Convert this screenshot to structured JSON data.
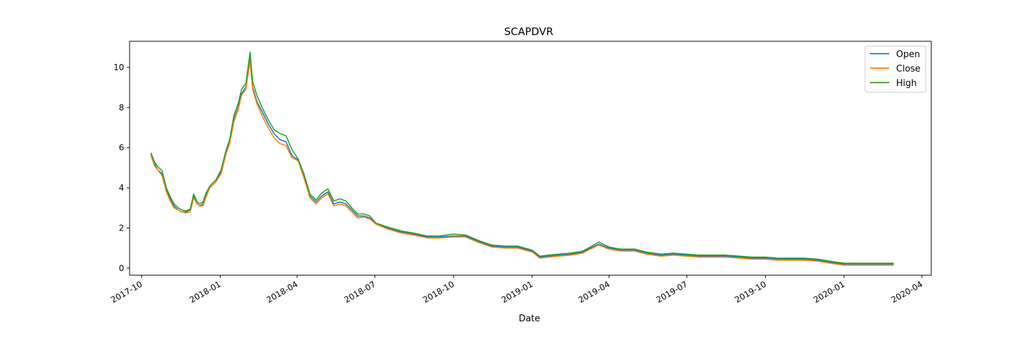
{
  "chart_data": {
    "type": "line",
    "title": "SCAPDVR",
    "xlabel": "Date",
    "ylabel": "",
    "xlim": [
      "2017-09-17",
      "2020-04-12"
    ],
    "ylim": [
      -0.35,
      11.3
    ],
    "x_ticks": [
      "2017-10",
      "2018-01",
      "2018-04",
      "2018-07",
      "2018-10",
      "2019-01",
      "2019-04",
      "2019-07",
      "2019-10",
      "2020-01",
      "2020-04"
    ],
    "y_ticks": [
      0,
      2,
      4,
      6,
      8,
      10
    ],
    "grid": false,
    "legend_position": "top-right",
    "colors": {
      "Open": "#1f77b4",
      "Close": "#ff7f0e",
      "High": "#2ca02c"
    },
    "x": [
      "2017-10-12",
      "2017-10-16",
      "2017-10-20",
      "2017-10-25",
      "2017-10-30",
      "2017-11-03",
      "2017-11-08",
      "2017-11-13",
      "2017-11-17",
      "2017-11-22",
      "2017-11-27",
      "2017-12-01",
      "2017-12-05",
      "2017-12-08",
      "2017-12-12",
      "2017-12-15",
      "2017-12-20",
      "2017-12-27",
      "2018-01-02",
      "2018-01-08",
      "2018-01-12",
      "2018-01-17",
      "2018-01-22",
      "2018-01-26",
      "2018-01-31",
      "2018-02-05",
      "2018-02-08",
      "2018-02-13",
      "2018-02-19",
      "2018-02-26",
      "2018-03-05",
      "2018-03-12",
      "2018-03-19",
      "2018-03-26",
      "2018-04-02",
      "2018-04-09",
      "2018-04-16",
      "2018-04-23",
      "2018-04-30",
      "2018-05-07",
      "2018-05-14",
      "2018-05-21",
      "2018-05-28",
      "2018-06-04",
      "2018-06-11",
      "2018-06-18",
      "2018-06-25",
      "2018-07-02",
      "2018-07-16",
      "2018-08-01",
      "2018-08-15",
      "2018-09-01",
      "2018-09-15",
      "2018-10-01",
      "2018-10-15",
      "2018-11-01",
      "2018-11-15",
      "2018-12-01",
      "2018-12-15",
      "2019-01-01",
      "2019-01-10",
      "2019-01-20",
      "2019-02-01",
      "2019-02-15",
      "2019-03-01",
      "2019-03-10",
      "2019-03-20",
      "2019-04-01",
      "2019-04-15",
      "2019-05-01",
      "2019-05-15",
      "2019-06-01",
      "2019-06-15",
      "2019-07-01",
      "2019-07-15",
      "2019-08-01",
      "2019-08-15",
      "2019-09-01",
      "2019-09-15",
      "2019-10-01",
      "2019-10-15",
      "2019-11-01",
      "2019-11-15",
      "2019-12-01",
      "2019-12-15",
      "2020-01-01",
      "2020-01-15",
      "2020-02-01",
      "2020-02-15",
      "2020-02-28"
    ],
    "series": [
      {
        "name": "Open",
        "values": [
          5.7,
          5.2,
          4.9,
          4.7,
          3.9,
          3.5,
          3.1,
          2.9,
          2.8,
          2.8,
          2.9,
          3.6,
          3.2,
          3.1,
          3.2,
          3.6,
          4.0,
          4.3,
          4.8,
          5.8,
          6.3,
          7.4,
          8.0,
          8.7,
          9.0,
          10.5,
          9.0,
          8.3,
          7.8,
          7.2,
          6.7,
          6.4,
          6.3,
          5.6,
          5.4,
          4.6,
          3.6,
          3.3,
          3.6,
          3.8,
          3.2,
          3.3,
          3.2,
          2.9,
          2.6,
          2.6,
          2.5,
          2.2,
          2.0,
          1.8,
          1.7,
          1.55,
          1.55,
          1.6,
          1.6,
          1.3,
          1.1,
          1.05,
          1.05,
          0.85,
          0.55,
          0.6,
          0.65,
          0.7,
          0.8,
          1.0,
          1.2,
          1.0,
          0.9,
          0.9,
          0.75,
          0.65,
          0.7,
          0.65,
          0.6,
          0.6,
          0.6,
          0.55,
          0.5,
          0.5,
          0.45,
          0.45,
          0.45,
          0.4,
          0.3,
          0.2,
          0.2,
          0.2,
          0.2,
          0.2
        ]
      },
      {
        "name": "Close",
        "values": [
          5.6,
          5.1,
          4.9,
          4.6,
          3.8,
          3.4,
          3.0,
          2.9,
          2.8,
          2.75,
          2.8,
          3.5,
          3.2,
          3.1,
          3.1,
          3.5,
          4.0,
          4.3,
          4.7,
          5.7,
          6.2,
          7.3,
          7.9,
          8.6,
          8.9,
          10.3,
          8.9,
          8.2,
          7.6,
          7.0,
          6.5,
          6.2,
          6.1,
          5.5,
          5.35,
          4.5,
          3.5,
          3.2,
          3.5,
          3.7,
          3.1,
          3.2,
          3.1,
          2.8,
          2.5,
          2.55,
          2.45,
          2.2,
          1.95,
          1.75,
          1.65,
          1.5,
          1.5,
          1.55,
          1.55,
          1.25,
          1.05,
          1.0,
          1.0,
          0.8,
          0.5,
          0.55,
          0.6,
          0.65,
          0.75,
          0.95,
          1.15,
          0.95,
          0.85,
          0.85,
          0.7,
          0.6,
          0.65,
          0.6,
          0.55,
          0.55,
          0.55,
          0.5,
          0.45,
          0.45,
          0.4,
          0.4,
          0.4,
          0.35,
          0.25,
          0.15,
          0.15,
          0.15,
          0.15,
          0.15
        ]
      },
      {
        "name": "High",
        "values": [
          5.75,
          5.3,
          5.05,
          4.85,
          4.0,
          3.6,
          3.2,
          3.0,
          2.9,
          2.85,
          2.95,
          3.7,
          3.3,
          3.2,
          3.3,
          3.7,
          4.1,
          4.4,
          4.9,
          5.9,
          6.4,
          7.6,
          8.2,
          8.9,
          9.2,
          10.75,
          9.3,
          8.6,
          8.0,
          7.4,
          6.9,
          6.7,
          6.6,
          5.9,
          5.45,
          4.7,
          3.7,
          3.4,
          3.75,
          3.95,
          3.35,
          3.45,
          3.35,
          3.0,
          2.7,
          2.7,
          2.6,
          2.25,
          2.05,
          1.85,
          1.75,
          1.6,
          1.6,
          1.7,
          1.65,
          1.35,
          1.15,
          1.1,
          1.1,
          0.9,
          0.6,
          0.65,
          0.7,
          0.75,
          0.85,
          1.05,
          1.3,
          1.05,
          0.95,
          0.95,
          0.8,
          0.7,
          0.75,
          0.7,
          0.65,
          0.65,
          0.65,
          0.6,
          0.55,
          0.55,
          0.5,
          0.5,
          0.5,
          0.45,
          0.35,
          0.25,
          0.25,
          0.25,
          0.25,
          0.25
        ]
      }
    ]
  }
}
